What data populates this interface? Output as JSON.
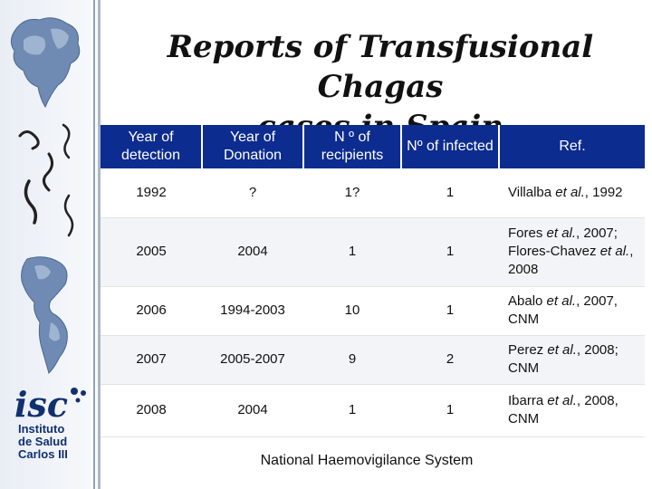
{
  "title_line1": "Reports of Transfusional Chagas",
  "title_line2": "cases in Spain",
  "table": {
    "headers": [
      "Year of detection",
      "Year of Donation",
      "N º of recipients",
      "Nº of infected",
      "Ref."
    ],
    "rows": [
      {
        "detection": "1992",
        "donation": "?",
        "recipients": "1?",
        "infected": "1",
        "ref": "Villalba et al., 1992"
      },
      {
        "detection": "2005",
        "donation": "2004",
        "recipients": "1",
        "infected": "1",
        "ref": "Fores et al., 2007; Flores-Chavez et al., 2008"
      },
      {
        "detection": "2006",
        "donation": "1994-2003",
        "recipients": "10",
        "infected": "1",
        "ref": "Abalo et al., 2007, CNM"
      },
      {
        "detection": "2007",
        "donation": "2005-2007",
        "recipients": "9",
        "infected": "2",
        "ref": "Perez et al., 2008; CNM"
      },
      {
        "detection": "2008",
        "donation": "2004",
        "recipients": "1",
        "infected": "1",
        "ref": "Ibarra et al., 2008, CNM"
      }
    ]
  },
  "footer": "National Haemovigilance System",
  "logo": {
    "line1": "Instituto",
    "line2": "de Salud",
    "line3": "Carlos III",
    "color": "#11306f"
  },
  "icons": [
    "world-map-icon",
    "trypanosome-icon",
    "americas-map-icon",
    "isc-logo-icon"
  ],
  "colors": {
    "header_bg": "#0d2c8f",
    "header_text": "#ffffff",
    "row_alt": "#f3f4f7"
  }
}
